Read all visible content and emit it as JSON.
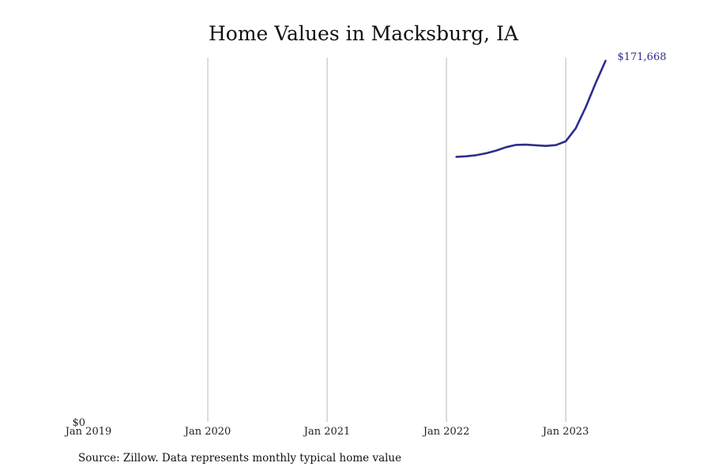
{
  "chart_data": {
    "type": "line",
    "title": "Home Values in Macksburg, IA",
    "xlabel": "",
    "ylabel": "",
    "x_ticks": [
      "Jan 2019",
      "Jan 2020",
      "Jan 2021",
      "Jan 2022",
      "Jan 2023"
    ],
    "y_ticks": [
      "$0"
    ],
    "ylim": [
      0,
      171668
    ],
    "xlim": [
      "2019-01",
      "2023-11"
    ],
    "grid": "vertical",
    "legend": "none",
    "colors": {
      "series": "#2e2d8c"
    },
    "series": [
      {
        "x": [
          "2022-02",
          "2022-03",
          "2022-04",
          "2022-05",
          "2022-06",
          "2022-07",
          "2022-08",
          "2022-09",
          "2022-10",
          "2022-11",
          "2022-12",
          "2023-01",
          "2023-02",
          "2023-03",
          "2023-04",
          "2023-05"
        ],
        "values": [
          126000,
          126300,
          126800,
          127700,
          129000,
          130600,
          131700,
          131800,
          131500,
          131200,
          131600,
          133400,
          139500,
          149500,
          161000,
          171668
        ]
      }
    ],
    "end_label": "$171,668"
  },
  "footer": {
    "source": "Source: Zillow. Data represents monthly typical home value"
  }
}
